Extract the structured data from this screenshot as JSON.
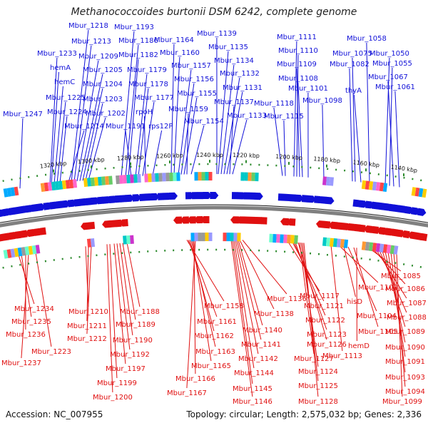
{
  "title": "Methanococcoides burtonii DSM 6242, complete genome",
  "accession": "Accession: NC_007955",
  "summary": "Topology: circular; Length: 2,575,032 bp; Genes: 2,336",
  "colors": {
    "forward": "#1010d8",
    "reverse": "#e01010",
    "backbone": "#808080",
    "tick": "#2e8b2e"
  },
  "ticks": [
    "1320 kbp",
    "1300 kbp",
    "1280 kbp",
    "1260 kbp",
    "1240 kbp",
    "1220 kbp",
    "1200 kbp",
    "1180 kbp",
    "1160 kbp",
    "1140 kbp"
  ],
  "top_labels": [
    "Mbur_1247",
    "Mbur_1233",
    "hemA",
    "hemC",
    "Mbur_1225",
    "Mbur_1224",
    "Mbur_1214",
    "Mbur_1218",
    "Mbur_1213",
    "Mbur_1209",
    "Mbur_1205",
    "Mbur_1204",
    "Mbur_1203",
    "Mbur_1202",
    "Mbur_1193",
    "Mbur_1186",
    "Mbur_1182",
    "Mbur_1191",
    "Mbur_1179",
    "Mbur_1178",
    "Mbur_1177",
    "rpoH",
    "rps12P",
    "Mbur_1164",
    "Mbur_1160",
    "Mbur_1157",
    "Mbur_1156",
    "Mbur_1155",
    "Mbur_1159",
    "Mbur_1154",
    "Mbur_1139",
    "Mbur_1135",
    "Mbur_1134",
    "Mbur_1132",
    "Mbur_1131",
    "Mbur_1137",
    "Mbur_1133",
    "Mbur_1111",
    "Mbur_1110",
    "Mbur_1109",
    "Mbur_1108",
    "Mbur_1118",
    "Mbur_1101",
    "Mbur_1115",
    "Mbur_1098",
    "Mbur_1058",
    "Mbur_1075",
    "Mbur_1050",
    "Mbur_1082",
    "Mbur_1055",
    "Mbur_1067",
    "thyA",
    "Mbur_1061"
  ],
  "bottom_labels": [
    "Mbur_1234",
    "Mbur_1235",
    "Mbur_1236",
    "Mbur_1237",
    "Mbur_1223",
    "Mbur_1210",
    "Mbur_1211",
    "Mbur_1212",
    "Mbur_1188",
    "Mbur_1189",
    "Mbur_1190",
    "Mbur_1192",
    "Mbur_1197",
    "Mbur_1199",
    "Mbur_1200",
    "Mbur_1158",
    "Mbur_1161",
    "Mbur_1162",
    "Mbur_1163",
    "Mbur_1165",
    "Mbur_1166",
    "Mbur_1167",
    "Mbur_1136",
    "Mbur_1138",
    "Mbur_1140",
    "Mbur_1141",
    "Mbur_1142",
    "Mbur_1144",
    "Mbur_1145",
    "Mbur_1146",
    "Mbur_1117",
    "Mbur_1121",
    "Mbur_1122",
    "Mbur_1123",
    "Mbur_1126",
    "Mbur_1127",
    "Mbur_1124",
    "Mbur_1125",
    "Mbur_1128",
    "Mbur_1102",
    "hisD",
    "Mbur_1104",
    "Mbur_1105",
    "hemD",
    "Mbur_1113",
    "Mbur_1085",
    "Mbur_1086",
    "Mbur_1087",
    "Mbur_1088",
    "Mbur_1089",
    "Mbur_1090",
    "Mbur_1091",
    "Mbur_1093",
    "Mbur_1094",
    "Mbur_1099"
  ]
}
